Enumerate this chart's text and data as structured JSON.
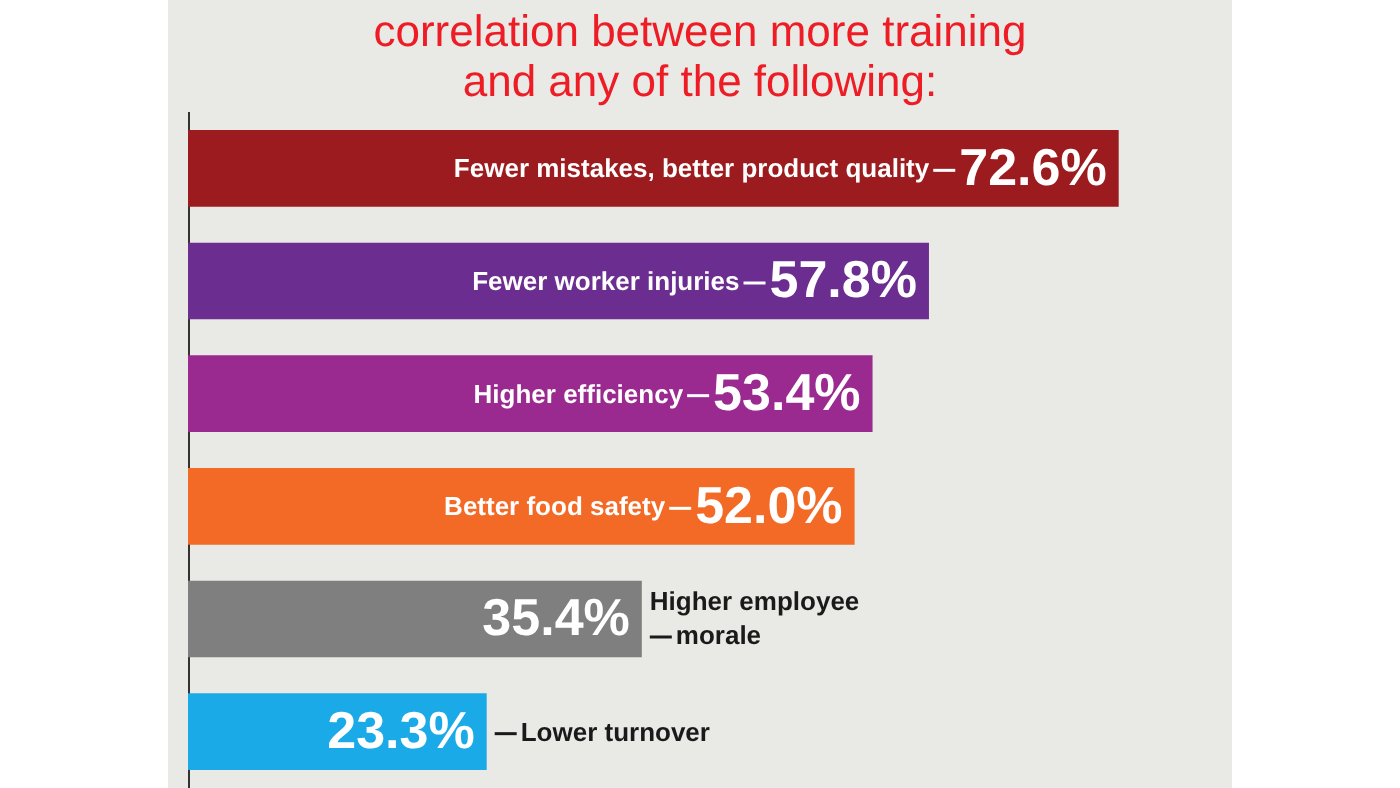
{
  "chart_data": {
    "type": "bar",
    "orientation": "horizontal",
    "title": "correlation between more training and any of the following:",
    "categories": [
      "Fewer mistakes, better product quality",
      "Fewer worker injuries",
      "Higher efficiency",
      "Better food safety",
      "Higher employee morale",
      "Lower turnover"
    ],
    "values": [
      72.6,
      57.8,
      53.4,
      52.0,
      35.4,
      23.3
    ],
    "colors": [
      "#9b1b1e",
      "#6b2d8f",
      "#9a2a90",
      "#f26a25",
      "#7f7f7f",
      "#1aaae8"
    ],
    "value_labels": [
      "72.6%",
      "57.8%",
      "53.4%",
      "52.0%",
      "35.4%",
      "23.3%"
    ],
    "legend": false
  }
}
